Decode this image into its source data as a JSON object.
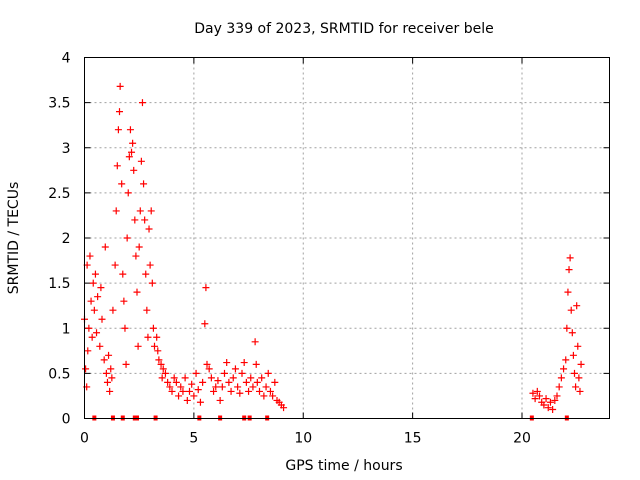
{
  "chart_data": {
    "type": "scatter",
    "title": "Day 339 of 2023, SRMTID for receiver bele",
    "xlabel": "GPS time / hours",
    "ylabel": "SRMTID / TECUs",
    "xlim": [
      0,
      24
    ],
    "ylim": [
      0,
      4
    ],
    "xticks": [
      0,
      5,
      10,
      15,
      20
    ],
    "xtick_labels": [
      "0",
      "5",
      "10",
      "15",
      "20"
    ],
    "yticks": [
      0,
      0.5,
      1,
      1.5,
      2,
      2.5,
      3,
      3.5,
      4
    ],
    "ytick_labels": [
      "0",
      "0.5",
      "1",
      "1.5",
      "2",
      "2.5",
      "3",
      "3.5",
      "4"
    ],
    "grid": true,
    "marker": "plus",
    "color": "#ff0000",
    "series": [
      {
        "name": "SRMTID",
        "points": [
          [
            0.0,
            1.1
          ],
          [
            0.05,
            0.55
          ],
          [
            0.1,
            0.35
          ],
          [
            0.12,
            1.7
          ],
          [
            0.15,
            0.75
          ],
          [
            0.2,
            1.0
          ],
          [
            0.25,
            1.8
          ],
          [
            0.3,
            1.3
          ],
          [
            0.35,
            0.9
          ],
          [
            0.4,
            1.5
          ],
          [
            0.45,
            1.2
          ],
          [
            0.5,
            1.6
          ],
          [
            0.55,
            0.95
          ],
          [
            0.6,
            1.35
          ],
          [
            0.7,
            0.8
          ],
          [
            0.75,
            1.45
          ],
          [
            0.8,
            1.1
          ],
          [
            0.9,
            0.65
          ],
          [
            0.95,
            1.9
          ],
          [
            1.0,
            0.5
          ],
          [
            1.05,
            0.4
          ],
          [
            1.1,
            0.7
          ],
          [
            1.15,
            0.3
          ],
          [
            1.2,
            0.55
          ],
          [
            1.25,
            0.45
          ],
          [
            1.3,
            1.2
          ],
          [
            1.4,
            1.7
          ],
          [
            1.45,
            2.3
          ],
          [
            1.5,
            2.8
          ],
          [
            1.55,
            3.2
          ],
          [
            1.6,
            3.4
          ],
          [
            1.63,
            3.68
          ],
          [
            1.7,
            2.6
          ],
          [
            1.75,
            1.6
          ],
          [
            1.8,
            1.3
          ],
          [
            1.85,
            1.0
          ],
          [
            1.9,
            0.6
          ],
          [
            1.95,
            2.0
          ],
          [
            2.0,
            2.5
          ],
          [
            2.05,
            2.9
          ],
          [
            2.1,
            3.2
          ],
          [
            2.15,
            2.95
          ],
          [
            2.2,
            3.05
          ],
          [
            2.25,
            2.75
          ],
          [
            2.3,
            2.2
          ],
          [
            2.35,
            1.8
          ],
          [
            2.4,
            1.4
          ],
          [
            2.45,
            0.8
          ],
          [
            2.5,
            1.9
          ],
          [
            2.55,
            2.3
          ],
          [
            2.6,
            2.85
          ],
          [
            2.65,
            3.5
          ],
          [
            2.7,
            2.6
          ],
          [
            2.75,
            2.2
          ],
          [
            2.8,
            1.6
          ],
          [
            2.85,
            1.2
          ],
          [
            2.9,
            0.9
          ],
          [
            2.95,
            2.1
          ],
          [
            3.0,
            1.7
          ],
          [
            3.05,
            2.3
          ],
          [
            3.1,
            1.5
          ],
          [
            3.15,
            1.0
          ],
          [
            3.2,
            0.8
          ],
          [
            3.3,
            0.9
          ],
          [
            3.35,
            0.75
          ],
          [
            3.4,
            0.65
          ],
          [
            3.5,
            0.6
          ],
          [
            3.55,
            0.45
          ],
          [
            3.6,
            0.55
          ],
          [
            3.7,
            0.5
          ],
          [
            3.8,
            0.4
          ],
          [
            3.9,
            0.35
          ],
          [
            4.0,
            0.3
          ],
          [
            4.1,
            0.45
          ],
          [
            4.2,
            0.4
          ],
          [
            4.3,
            0.25
          ],
          [
            4.4,
            0.35
          ],
          [
            4.5,
            0.3
          ],
          [
            4.6,
            0.45
          ],
          [
            4.7,
            0.2
          ],
          [
            4.8,
            0.3
          ],
          [
            4.9,
            0.38
          ],
          [
            5.0,
            0.25
          ],
          [
            5.1,
            0.5
          ],
          [
            5.2,
            0.32
          ],
          [
            5.3,
            0.18
          ],
          [
            5.4,
            0.4
          ],
          [
            5.5,
            1.05
          ],
          [
            5.55,
            1.45
          ],
          [
            5.6,
            0.6
          ],
          [
            5.7,
            0.55
          ],
          [
            5.8,
            0.45
          ],
          [
            5.9,
            0.3
          ],
          [
            6.0,
            0.35
          ],
          [
            6.1,
            0.42
          ],
          [
            6.2,
            0.2
          ],
          [
            6.3,
            0.35
          ],
          [
            6.4,
            0.5
          ],
          [
            6.5,
            0.62
          ],
          [
            6.6,
            0.4
          ],
          [
            6.7,
            0.3
          ],
          [
            6.8,
            0.45
          ],
          [
            6.9,
            0.55
          ],
          [
            7.0,
            0.35
          ],
          [
            7.1,
            0.28
          ],
          [
            7.2,
            0.5
          ],
          [
            7.3,
            0.62
          ],
          [
            7.4,
            0.4
          ],
          [
            7.5,
            0.3
          ],
          [
            7.6,
            0.45
          ],
          [
            7.7,
            0.35
          ],
          [
            7.8,
            0.85
          ],
          [
            7.85,
            0.6
          ],
          [
            7.9,
            0.4
          ],
          [
            8.0,
            0.3
          ],
          [
            8.1,
            0.45
          ],
          [
            8.2,
            0.25
          ],
          [
            8.3,
            0.35
          ],
          [
            8.4,
            0.5
          ],
          [
            8.5,
            0.3
          ],
          [
            8.6,
            0.25
          ],
          [
            8.7,
            0.4
          ],
          [
            8.8,
            0.2
          ],
          [
            8.9,
            0.18
          ],
          [
            9.0,
            0.15
          ],
          [
            9.1,
            0.12
          ],
          [
            20.5,
            0.28
          ],
          [
            20.6,
            0.22
          ],
          [
            20.7,
            0.3
          ],
          [
            20.8,
            0.25
          ],
          [
            20.9,
            0.18
          ],
          [
            21.0,
            0.15
          ],
          [
            21.1,
            0.22
          ],
          [
            21.2,
            0.12
          ],
          [
            21.3,
            0.18
          ],
          [
            21.4,
            0.1
          ],
          [
            21.5,
            0.2
          ],
          [
            21.6,
            0.25
          ],
          [
            21.7,
            0.35
          ],
          [
            21.8,
            0.45
          ],
          [
            21.9,
            0.55
          ],
          [
            22.0,
            0.65
          ],
          [
            22.05,
            1.0
          ],
          [
            22.1,
            1.4
          ],
          [
            22.15,
            1.65
          ],
          [
            22.2,
            1.78
          ],
          [
            22.25,
            1.2
          ],
          [
            22.3,
            0.95
          ],
          [
            22.35,
            0.7
          ],
          [
            22.4,
            0.5
          ],
          [
            22.45,
            0.35
          ],
          [
            22.5,
            1.25
          ],
          [
            22.55,
            0.8
          ],
          [
            22.6,
            0.45
          ],
          [
            22.65,
            0.3
          ],
          [
            22.7,
            0.6
          ]
        ]
      }
    ],
    "baseline_markers": [
      0.45,
      1.3,
      1.75,
      2.3,
      2.4,
      3.25,
      5.25,
      6.2,
      7.3,
      7.55,
      8.35,
      20.45,
      22.05
    ]
  }
}
